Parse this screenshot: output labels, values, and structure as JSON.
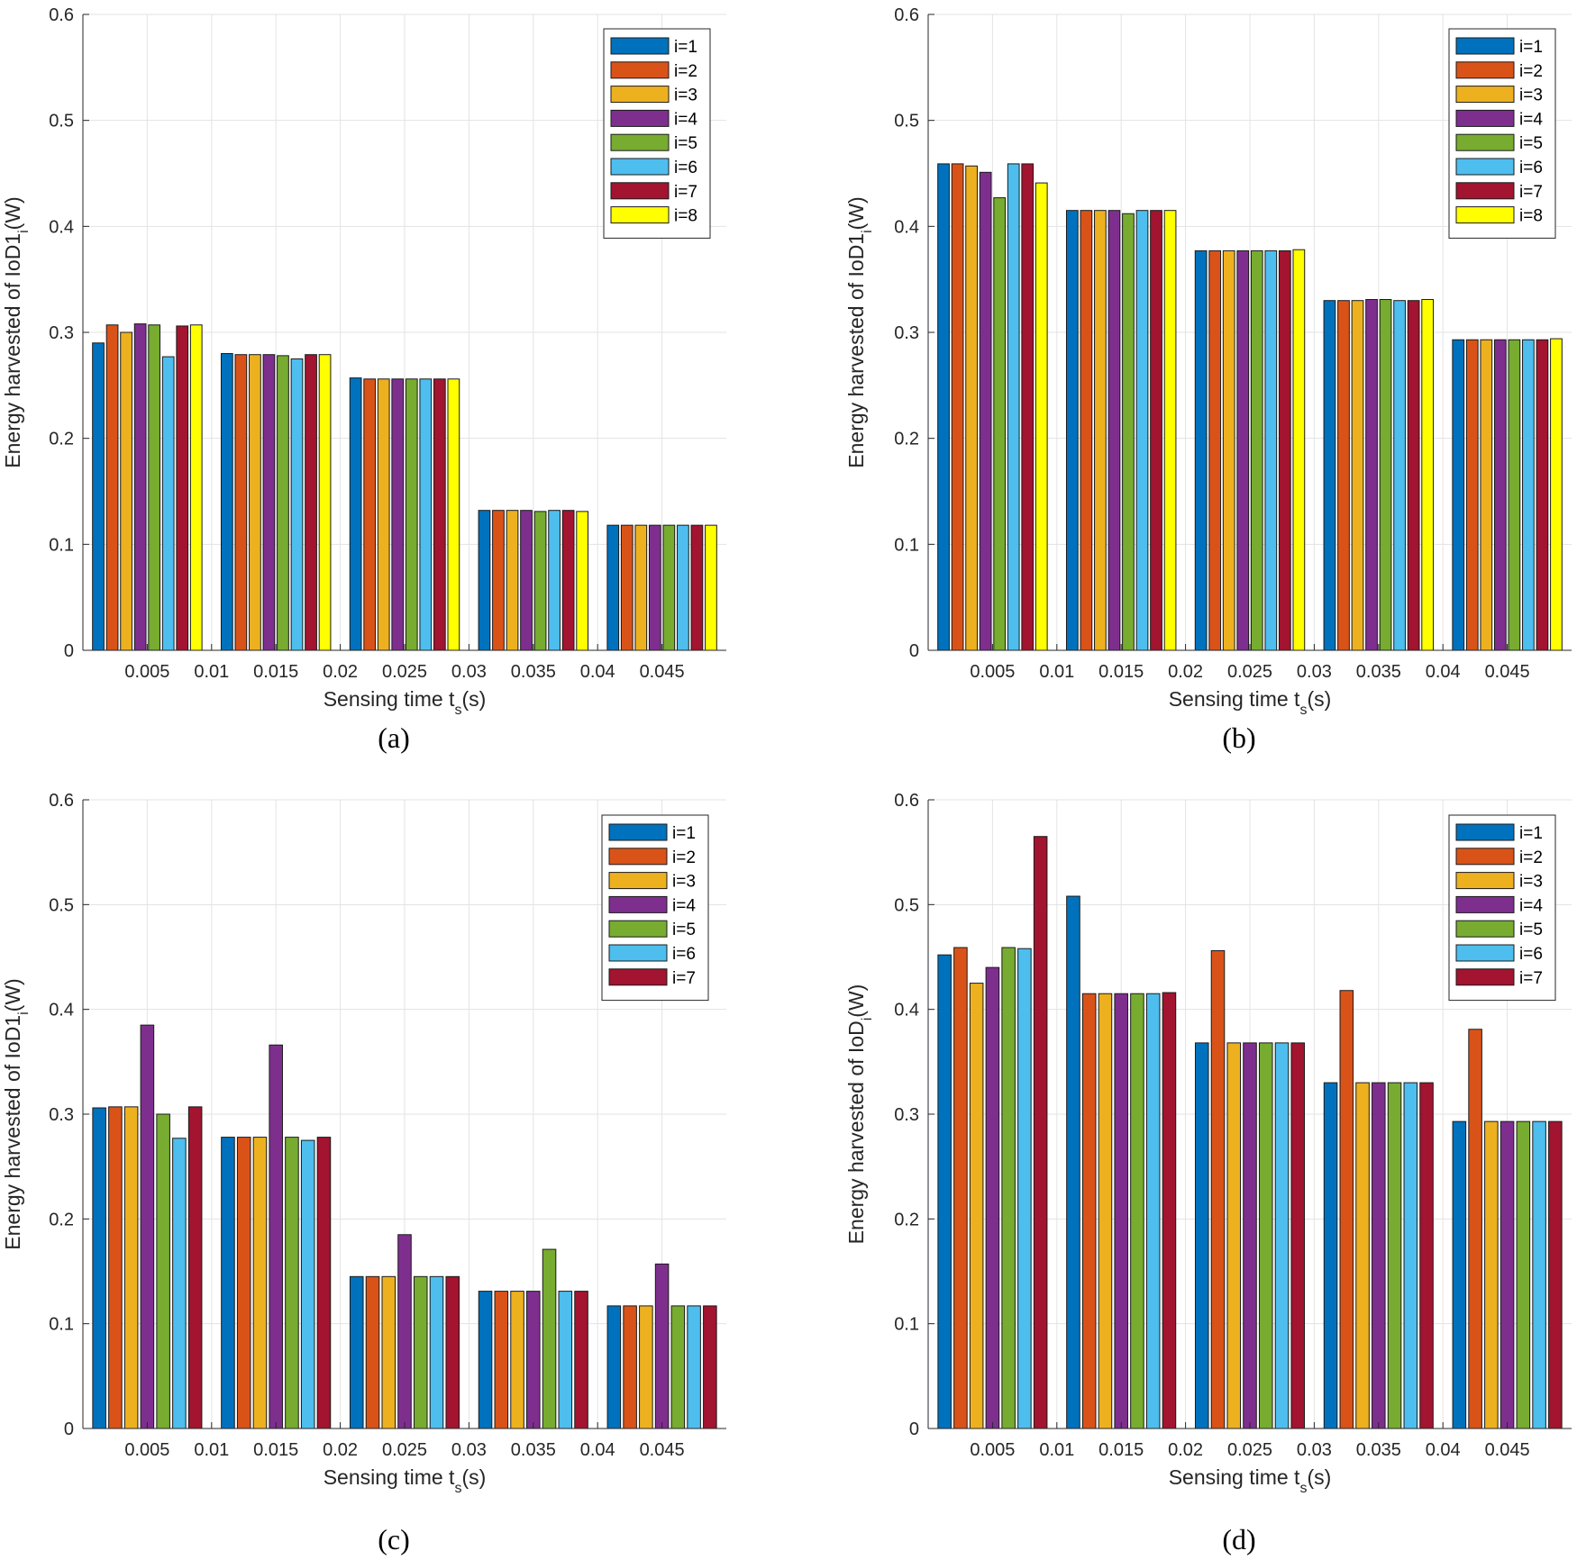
{
  "colors": [
    "#0072BD",
    "#D95319",
    "#EDB120",
    "#7E2F8E",
    "#77AC30",
    "#4DBEEE",
    "#A2142F",
    "#FFFF00"
  ],
  "chart_data": [
    {
      "type": "bar",
      "caption": "(a)",
      "xlabel": "Sensing time t",
      "xlabel_sub": "s",
      "xlabel_tail": "(s)",
      "ylabel": "Energy harvested of IoD1",
      "ylabel_sub": "i",
      "ylabel_tail": "(W)",
      "xlim": [
        0,
        0.05
      ],
      "ylim": [
        0,
        0.6
      ],
      "xticks": [
        "0.005",
        "0.01",
        "0.015",
        "0.02",
        "0.025",
        "0.03",
        "0.035",
        "0.04",
        "0.045"
      ],
      "yticks": [
        "0",
        "0.1",
        "0.2",
        "0.3",
        "0.4",
        "0.5",
        "0.6"
      ],
      "legend_location": "top-right",
      "categories": [
        0.005,
        0.015,
        0.025,
        0.035,
        0.045
      ],
      "series": [
        {
          "name": "i=1",
          "values": [
            0.29,
            0.28,
            0.257,
            0.132,
            0.118
          ]
        },
        {
          "name": "i=2",
          "values": [
            0.307,
            0.279,
            0.256,
            0.132,
            0.118
          ]
        },
        {
          "name": "i=3",
          "values": [
            0.3,
            0.279,
            0.256,
            0.132,
            0.118
          ]
        },
        {
          "name": "i=4",
          "values": [
            0.308,
            0.279,
            0.256,
            0.132,
            0.118
          ]
        },
        {
          "name": "i=5",
          "values": [
            0.307,
            0.278,
            0.256,
            0.131,
            0.118
          ]
        },
        {
          "name": "i=6",
          "values": [
            0.277,
            0.275,
            0.256,
            0.132,
            0.118
          ]
        },
        {
          "name": "i=7",
          "values": [
            0.306,
            0.279,
            0.256,
            0.132,
            0.118
          ]
        },
        {
          "name": "i=8",
          "values": [
            0.307,
            0.279,
            0.256,
            0.131,
            0.118
          ]
        }
      ]
    },
    {
      "type": "bar",
      "caption": "(b)",
      "xlabel": "Sensing time t",
      "xlabel_sub": "s",
      "xlabel_tail": "(s)",
      "ylabel": "Energy harvested of IoD1",
      "ylabel_sub": "i",
      "ylabel_tail": "(W)",
      "xlim": [
        0,
        0.05
      ],
      "ylim": [
        0,
        0.6
      ],
      "xticks": [
        "0.005",
        "0.01",
        "0.015",
        "0.02",
        "0.025",
        "0.03",
        "0.035",
        "0.04",
        "0.045"
      ],
      "yticks": [
        "0",
        "0.1",
        "0.2",
        "0.3",
        "0.4",
        "0.5",
        "0.6"
      ],
      "legend_location": "top-right",
      "categories": [
        0.005,
        0.015,
        0.025,
        0.035,
        0.045
      ],
      "series": [
        {
          "name": "i=1",
          "values": [
            0.459,
            0.415,
            0.377,
            0.33,
            0.293
          ]
        },
        {
          "name": "i=2",
          "values": [
            0.459,
            0.415,
            0.377,
            0.33,
            0.293
          ]
        },
        {
          "name": "i=3",
          "values": [
            0.457,
            0.415,
            0.377,
            0.33,
            0.293
          ]
        },
        {
          "name": "i=4",
          "values": [
            0.451,
            0.415,
            0.377,
            0.331,
            0.293
          ]
        },
        {
          "name": "i=5",
          "values": [
            0.427,
            0.412,
            0.377,
            0.331,
            0.293
          ]
        },
        {
          "name": "i=6",
          "values": [
            0.459,
            0.415,
            0.377,
            0.33,
            0.293
          ]
        },
        {
          "name": "i=7",
          "values": [
            0.459,
            0.415,
            0.377,
            0.33,
            0.293
          ]
        },
        {
          "name": "i=8",
          "values": [
            0.441,
            0.415,
            0.378,
            0.331,
            0.294
          ]
        }
      ]
    },
    {
      "type": "bar",
      "caption": "(c)",
      "xlabel": "Sensing time t",
      "xlabel_sub": "s",
      "xlabel_tail": "(s)",
      "ylabel": "Energy harvested of IoD1",
      "ylabel_sub": "i",
      "ylabel_tail": "(W)",
      "xlim": [
        0,
        0.05
      ],
      "ylim": [
        0,
        0.6
      ],
      "xticks": [
        "0.005",
        "0.01",
        "0.015",
        "0.02",
        "0.025",
        "0.03",
        "0.035",
        "0.04",
        "0.045"
      ],
      "yticks": [
        "0",
        "0.1",
        "0.2",
        "0.3",
        "0.4",
        "0.5",
        "0.6"
      ],
      "legend_location": "top-right",
      "categories": [
        0.005,
        0.015,
        0.025,
        0.035,
        0.045
      ],
      "series": [
        {
          "name": "i=1",
          "values": [
            0.306,
            0.278,
            0.145,
            0.131,
            0.117
          ]
        },
        {
          "name": "i=2",
          "values": [
            0.307,
            0.278,
            0.145,
            0.131,
            0.117
          ]
        },
        {
          "name": "i=3",
          "values": [
            0.307,
            0.278,
            0.145,
            0.131,
            0.117
          ]
        },
        {
          "name": "i=4",
          "values": [
            0.385,
            0.366,
            0.185,
            0.131,
            0.157
          ]
        },
        {
          "name": "i=5",
          "values": [
            0.3,
            0.278,
            0.145,
            0.171,
            0.117
          ]
        },
        {
          "name": "i=6",
          "values": [
            0.277,
            0.275,
            0.145,
            0.131,
            0.117
          ]
        },
        {
          "name": "i=7",
          "values": [
            0.307,
            0.278,
            0.145,
            0.131,
            0.117
          ]
        }
      ]
    },
    {
      "type": "bar",
      "caption": "(d)",
      "xlabel": "Sensing time t",
      "xlabel_sub": "s",
      "xlabel_tail": "(s)",
      "ylabel": "Energy harvested of IoD",
      "ylabel_sub": "i",
      "ylabel_tail": "(W)",
      "xlim": [
        0,
        0.05
      ],
      "ylim": [
        0,
        0.6
      ],
      "xticks": [
        "0.005",
        "0.01",
        "0.015",
        "0.02",
        "0.025",
        "0.03",
        "0.035",
        "0.04",
        "0.045"
      ],
      "yticks": [
        "0",
        "0.1",
        "0.2",
        "0.3",
        "0.4",
        "0.5",
        "0.6"
      ],
      "legend_location": "top-right",
      "categories": [
        0.005,
        0.015,
        0.025,
        0.035,
        0.045
      ],
      "series": [
        {
          "name": "i=1",
          "values": [
            0.452,
            0.508,
            0.368,
            0.33,
            0.293
          ]
        },
        {
          "name": "i=2",
          "values": [
            0.459,
            0.415,
            0.456,
            0.418,
            0.381
          ]
        },
        {
          "name": "i=3",
          "values": [
            0.425,
            0.415,
            0.368,
            0.33,
            0.293
          ]
        },
        {
          "name": "i=4",
          "values": [
            0.44,
            0.415,
            0.368,
            0.33,
            0.293
          ]
        },
        {
          "name": "i=5",
          "values": [
            0.459,
            0.415,
            0.368,
            0.33,
            0.293
          ]
        },
        {
          "name": "i=6",
          "values": [
            0.458,
            0.415,
            0.368,
            0.33,
            0.293
          ]
        },
        {
          "name": "i=7",
          "values": [
            0.565,
            0.416,
            0.368,
            0.33,
            0.293
          ]
        }
      ]
    }
  ]
}
